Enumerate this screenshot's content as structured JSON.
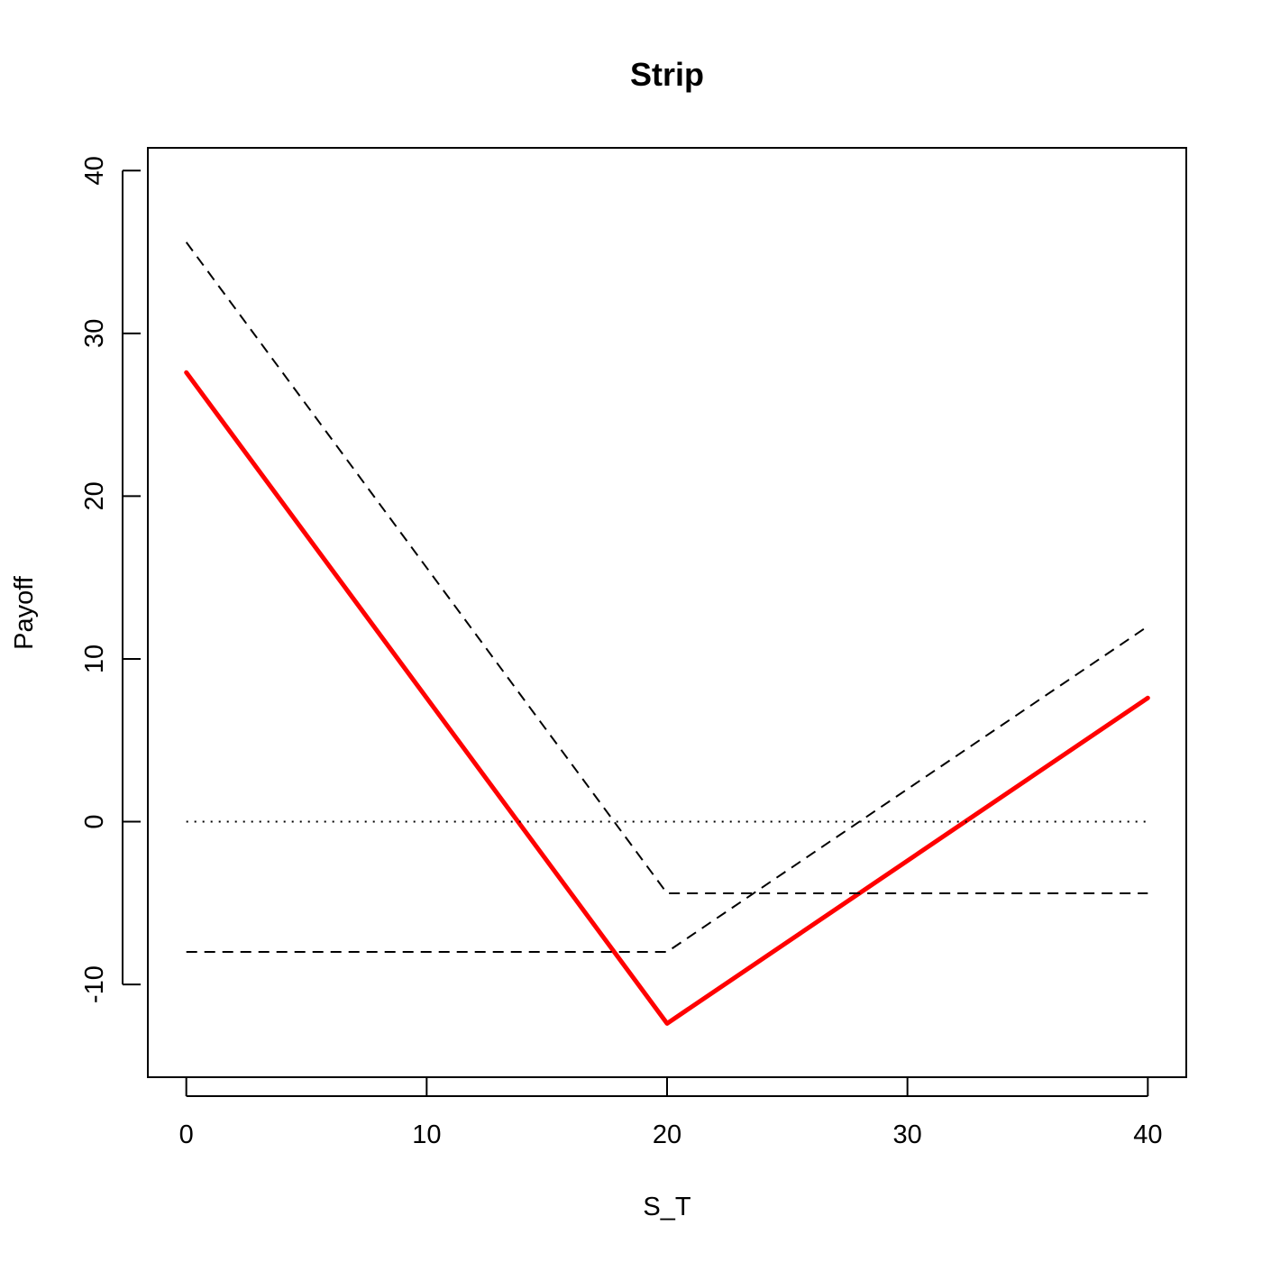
{
  "chart_data": {
    "type": "line",
    "title": "Strip",
    "xlabel": "S_T",
    "ylabel": "Payoff",
    "xlim": [
      -1.6,
      41.6
    ],
    "ylim": [
      -15.7,
      41.4
    ],
    "x_ticks": [
      0,
      10,
      20,
      30,
      40
    ],
    "x_tick_labels": [
      "0",
      "10",
      "20",
      "30",
      "40"
    ],
    "y_ticks": [
      -10,
      0,
      10,
      20,
      30,
      40
    ],
    "y_tick_labels": [
      "-10",
      "0",
      "10",
      "20",
      "30",
      "40"
    ],
    "grid": false,
    "legend": "none",
    "colors": {
      "payoff": "#ff0000",
      "lines": "#000000"
    },
    "series": [
      {
        "style": "solid",
        "color": "#ff0000",
        "x": [
          0,
          20,
          40
        ],
        "y": [
          27.6,
          -12.4,
          7.6
        ]
      },
      {
        "style": "dashed",
        "color": "#000000",
        "x": [
          0,
          20,
          40
        ],
        "y": [
          35.6,
          -4.4,
          -4.4
        ]
      },
      {
        "style": "dashed",
        "color": "#000000",
        "x": [
          0,
          20,
          40
        ],
        "y": [
          -8,
          -8,
          12
        ]
      },
      {
        "style": "dotted",
        "color": "#000000",
        "x": [
          0,
          40
        ],
        "y": [
          0,
          0
        ]
      }
    ]
  }
}
